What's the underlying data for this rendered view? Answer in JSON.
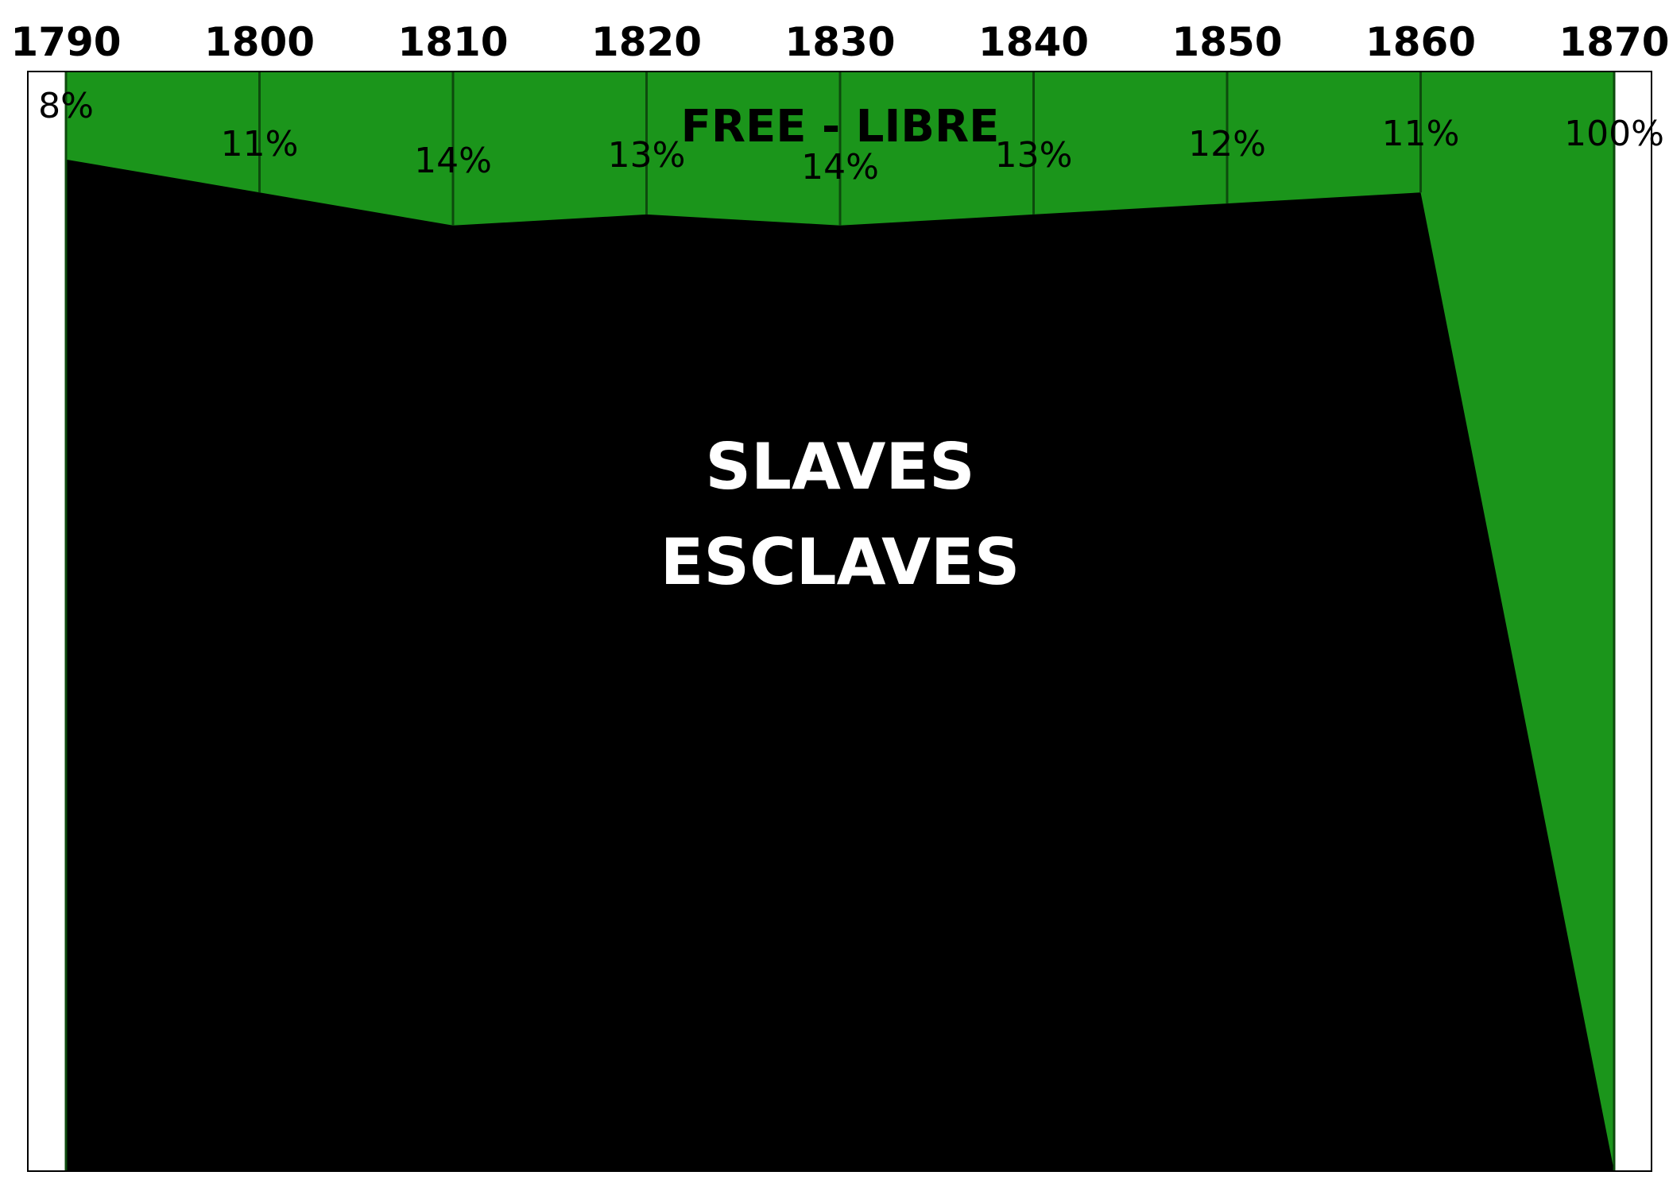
{
  "chart_data": {
    "type": "area",
    "x": [
      1790,
      1800,
      1810,
      1820,
      1830,
      1840,
      1850,
      1860,
      1870
    ],
    "tick_labels": [
      "1790",
      "1800",
      "1810",
      "1820",
      "1830",
      "1840",
      "1850",
      "1860",
      "1870"
    ],
    "series": [
      {
        "name": "FREE - LIBRE",
        "values": [
          8,
          11,
          14,
          13,
          14,
          13,
          12,
          11,
          100
        ],
        "color": "#1b951b"
      },
      {
        "name": "SLAVES / ESCLAVES",
        "values": [
          92,
          89,
          86,
          87,
          86,
          87,
          88,
          89,
          0
        ],
        "color": "#000000"
      }
    ],
    "data_labels": [
      "8%",
      "11%",
      "14%",
      "13%",
      "14%",
      "13%",
      "12%",
      "11%",
      "100%"
    ],
    "free_label": "FREE - LIBRE",
    "slaves_label_line1": "SLAVES",
    "slaves_label_line2": "ESCLAVES",
    "ylim": [
      0,
      100
    ],
    "grid": true,
    "colors": {
      "free": "#1b951b",
      "slaves": "#000000",
      "gridline": "#0d4a0d",
      "frame": "#000000",
      "background": "#ffffff"
    }
  }
}
